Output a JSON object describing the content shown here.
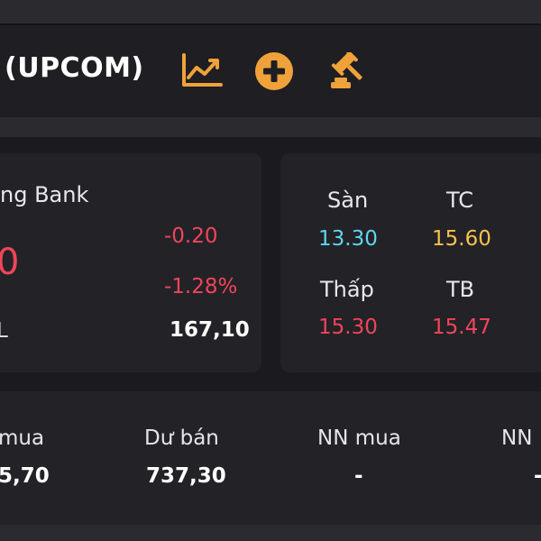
{
  "header": {
    "title": "(UPCOM)",
    "icons": [
      "chart-icon",
      "plus-circle-icon",
      "auction-icon"
    ],
    "accent_color": "#f0a23a"
  },
  "stock": {
    "name": "ng Bank",
    "price": "0",
    "change": "-0.20",
    "change_pct": "-1.28%",
    "left_label": "L",
    "volume": "167,10"
  },
  "prices": {
    "san_label": "Sàn",
    "san_value": "13.30",
    "tc_label": "TC",
    "tc_value": "15.60",
    "thap_label": "Thấp",
    "thap_value": "15.30",
    "tb_label": "TB",
    "tb_value": "15.47"
  },
  "bottom": {
    "items": [
      {
        "label": "mua",
        "value": "5,70"
      },
      {
        "label": "Dư bán",
        "value": "737,30"
      },
      {
        "label": "NN mua",
        "value": "-"
      },
      {
        "label": "NN",
        "value": "-"
      }
    ]
  }
}
